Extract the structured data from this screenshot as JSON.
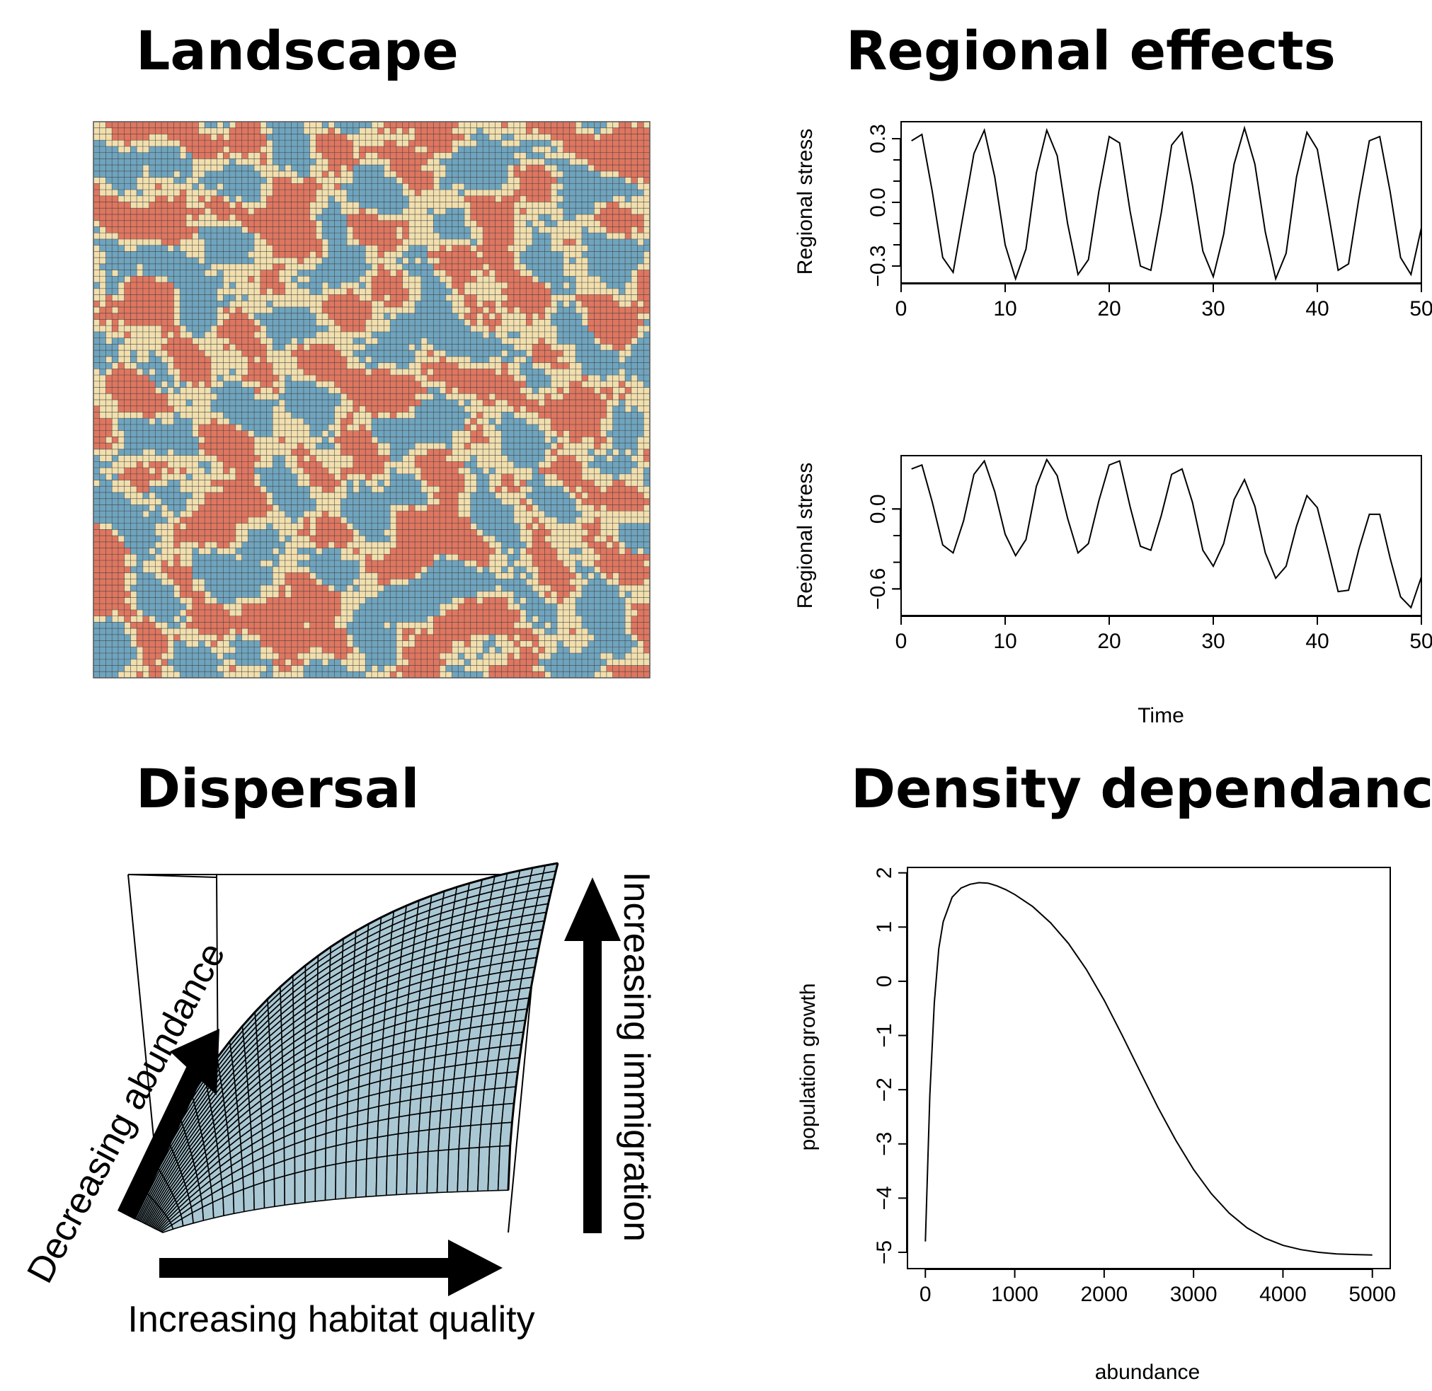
{
  "panels": {
    "landscape": {
      "title": "Landscape"
    },
    "regional": {
      "title": "Regional effects"
    },
    "dispersal": {
      "title": "Dispersal"
    },
    "density": {
      "title": "Density dependance"
    }
  },
  "colors": {
    "low": "#6fa4be",
    "mid": "#f1dfae",
    "high": "#df7660",
    "line": "#000000",
    "grid": "#3a3a3a"
  },
  "chart_data": [
    {
      "id": "landscape",
      "type": "heatmap",
      "title": "Landscape",
      "grid_cells": [
        90,
        90
      ],
      "palette": [
        "#6fa4be",
        "#f1dfae",
        "#df7660"
      ]
    },
    {
      "id": "regional-1",
      "type": "line",
      "ylabel": "Regional stress",
      "xlabel": "",
      "xlim": [
        0,
        50
      ],
      "ylim": [
        -0.38,
        0.38
      ],
      "xticks": [
        "0",
        "10",
        "20",
        "30",
        "40",
        "50"
      ],
      "yticks": [
        "-0.3",
        "0.0",
        "0.3"
      ],
      "x": [
        1,
        2,
        3,
        4,
        5,
        6,
        7,
        8,
        9,
        10,
        11,
        12,
        13,
        14,
        15,
        16,
        17,
        18,
        19,
        20,
        21,
        22,
        23,
        24,
        25,
        26,
        27,
        28,
        29,
        30,
        31,
        32,
        33,
        34,
        35,
        36,
        37,
        38,
        39,
        40,
        41,
        42,
        43,
        44,
        45,
        46,
        47,
        48,
        49,
        50
      ],
      "y": [
        0.29,
        0.32,
        0.05,
        -0.26,
        -0.33,
        -0.05,
        0.23,
        0.34,
        0.12,
        -0.2,
        -0.36,
        -0.22,
        0.14,
        0.34,
        0.22,
        -0.1,
        -0.34,
        -0.27,
        0.05,
        0.31,
        0.28,
        -0.04,
        -0.3,
        -0.32,
        -0.05,
        0.27,
        0.33,
        0.08,
        -0.23,
        -0.35,
        -0.15,
        0.18,
        0.35,
        0.18,
        -0.14,
        -0.36,
        -0.24,
        0.12,
        0.33,
        0.25,
        -0.03,
        -0.32,
        -0.29,
        0.02,
        0.29,
        0.31,
        0.05,
        -0.26,
        -0.34,
        -0.12
      ]
    },
    {
      "id": "regional-2",
      "type": "line",
      "ylabel": "Regional stress",
      "xlabel": "Time",
      "xlim": [
        0,
        50
      ],
      "ylim": [
        -0.8,
        0.4
      ],
      "xticks": [
        "0",
        "10",
        "20",
        "30",
        "40",
        "50"
      ],
      "yticks": [
        "-0.6",
        "0.0"
      ],
      "x": [
        1,
        2,
        3,
        4,
        5,
        6,
        7,
        8,
        9,
        10,
        11,
        12,
        13,
        14,
        15,
        16,
        17,
        18,
        19,
        20,
        21,
        22,
        23,
        24,
        25,
        26,
        27,
        28,
        29,
        30,
        31,
        32,
        33,
        34,
        35,
        36,
        37,
        38,
        39,
        40,
        41,
        42,
        43,
        44,
        45,
        46,
        47,
        48,
        49,
        50
      ],
      "y": [
        0.3,
        0.33,
        0.05,
        -0.27,
        -0.33,
        -0.09,
        0.26,
        0.36,
        0.13,
        -0.19,
        -0.35,
        -0.23,
        0.17,
        0.37,
        0.25,
        -0.07,
        -0.33,
        -0.26,
        0.06,
        0.33,
        0.36,
        0.02,
        -0.28,
        -0.31,
        -0.05,
        0.26,
        0.3,
        0.05,
        -0.31,
        -0.43,
        -0.26,
        0.07,
        0.22,
        0.02,
        -0.33,
        -0.52,
        -0.43,
        -0.13,
        0.1,
        0.01,
        -0.3,
        -0.62,
        -0.61,
        -0.3,
        -0.04,
        -0.04,
        -0.37,
        -0.66,
        -0.74,
        -0.51
      ]
    },
    {
      "id": "dispersal",
      "type": "other",
      "title": "Dispersal",
      "labels": {
        "x_arrow": "Increasing habitat quality",
        "depth_arrow": "Decreasing abundance",
        "z_arrow": "Increasing immigration"
      }
    },
    {
      "id": "density",
      "type": "line",
      "title": "Density dependance",
      "xlabel": "abundance",
      "ylabel": "population growth",
      "xlim": [
        -200,
        5200
      ],
      "ylim": [
        -5.3,
        2.1
      ],
      "xticks": [
        "0",
        "1000",
        "2000",
        "3000",
        "4000",
        "5000"
      ],
      "yticks": [
        "2",
        "1",
        "0",
        "-1",
        "-2",
        "-3",
        "-4",
        "-5"
      ],
      "x": [
        0,
        50,
        100,
        150,
        200,
        300,
        400,
        500,
        600,
        700,
        800,
        900,
        1000,
        1200,
        1400,
        1600,
        1800,
        2000,
        2200,
        2400,
        2600,
        2800,
        3000,
        3200,
        3400,
        3600,
        3800,
        4000,
        4200,
        4400,
        4600,
        4800,
        5000
      ],
      "y": [
        -4.8,
        -2.1,
        -0.4,
        0.6,
        1.1,
        1.55,
        1.72,
        1.79,
        1.82,
        1.81,
        1.76,
        1.69,
        1.6,
        1.38,
        1.08,
        0.7,
        0.22,
        -0.35,
        -0.99,
        -1.66,
        -2.32,
        -2.93,
        -3.47,
        -3.92,
        -4.28,
        -4.55,
        -4.74,
        -4.87,
        -4.95,
        -5.0,
        -5.03,
        -5.04,
        -5.05
      ]
    }
  ]
}
